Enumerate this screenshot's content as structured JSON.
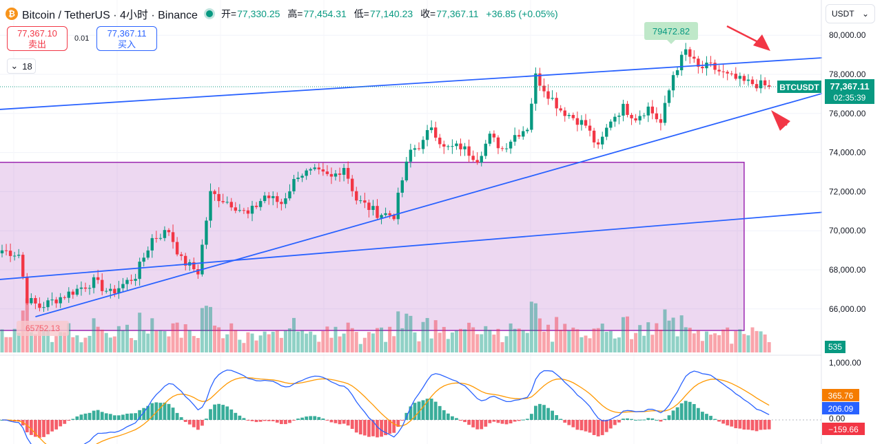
{
  "header": {
    "coin_glyph": "₿",
    "symbol": "Bitcoin / TetherUS · 4小时 · Binance",
    "open_label": "开=",
    "open": "77,330.25",
    "high_label": "高=",
    "high": "77,454.31",
    "low_label": "低=",
    "low": "77,140.23",
    "close_label": "收=",
    "close": "77,367.11",
    "change": "+36.85 (+0.05%)"
  },
  "trade": {
    "sell_price": "77,367.10",
    "sell_label": "卖出",
    "spread": "0.01",
    "buy_price": "77,367.11",
    "buy_label": "买入"
  },
  "indicators": {
    "count": "18"
  },
  "currency": {
    "label": "USDT",
    "caret": "⌄"
  },
  "colors": {
    "up": "#089981",
    "down": "#f23645",
    "line": "#2962ff",
    "zone": "#9c27b0"
  },
  "chart_data": {
    "type": "candlestick",
    "ylim": [
      63900,
      81200
    ],
    "y_ticks": [
      "80,000.00",
      "78,000.00",
      "76,000.00",
      "74,000.00",
      "72,000.00",
      "70,000.00",
      "68,000.00",
      "66,000.00"
    ],
    "y_tick_values": [
      80000,
      78000,
      76000,
      74000,
      72000,
      70000,
      68000,
      66000
    ],
    "price_label": {
      "symbol": "BTCUSDT",
      "price": "77,367.11",
      "countdown": "02:35:39"
    },
    "high_annotation": "79472.82",
    "low_annotation": "65752.13",
    "volume_label": "535",
    "anchor_points": [
      [
        0,
        69000
      ],
      [
        4,
        68800
      ],
      [
        6,
        66500
      ],
      [
        9,
        66100
      ],
      [
        15,
        66700
      ],
      [
        22,
        67400
      ],
      [
        26,
        66800
      ],
      [
        32,
        67700
      ],
      [
        36,
        69600
      ],
      [
        40,
        70000
      ],
      [
        43,
        68500
      ],
      [
        47,
        67900
      ],
      [
        50,
        71900
      ],
      [
        55,
        71400
      ],
      [
        59,
        70800
      ],
      [
        63,
        71800
      ],
      [
        67,
        71400
      ],
      [
        71,
        72900
      ],
      [
        75,
        73000
      ],
      [
        79,
        72700
      ],
      [
        82,
        73300
      ],
      [
        85,
        71600
      ],
      [
        90,
        70900
      ],
      [
        94,
        70800
      ],
      [
        96,
        72600
      ],
      [
        98,
        74100
      ],
      [
        101,
        74500
      ],
      [
        103,
        75400
      ],
      [
        106,
        74200
      ],
      [
        110,
        74300
      ],
      [
        114,
        73700
      ],
      [
        117,
        74800
      ],
      [
        120,
        74200
      ],
      [
        123,
        74900
      ],
      [
        126,
        75300
      ],
      [
        128,
        77900
      ],
      [
        131,
        77000
      ],
      [
        134,
        76200
      ],
      [
        137,
        75800
      ],
      [
        140,
        75400
      ],
      [
        143,
        74200
      ],
      [
        146,
        75700
      ],
      [
        149,
        76300
      ],
      [
        152,
        75800
      ],
      [
        155,
        76300
      ],
      [
        158,
        75500
      ],
      [
        161,
        78000
      ],
      [
        164,
        79200
      ],
      [
        167,
        78300
      ],
      [
        170,
        78400
      ],
      [
        174,
        77900
      ],
      [
        178,
        77600
      ],
      [
        181,
        77500
      ],
      [
        184,
        77367
      ]
    ],
    "trendlines": [
      {
        "name": "upper-channel-line",
        "p1": [
          -1,
          76200
        ],
        "p2": [
          197,
          78850
        ]
      },
      {
        "name": "rising-support-line",
        "p1": [
          8,
          65600
        ],
        "p2": [
          198,
          77100
        ]
      },
      {
        "name": "mid-trend-line",
        "p1": [
          -1,
          67500
        ],
        "p2": [
          197,
          70950
        ]
      }
    ],
    "zone": {
      "x_from": -1,
      "x_to": 178,
      "y_from": 64900,
      "y_to": 73500
    },
    "macd": {
      "ylim": [
        -400,
        1100
      ],
      "ticks": [
        "1,000.00",
        "0.00"
      ],
      "tick_values": [
        1000,
        0
      ],
      "signal_label": "365.76",
      "macd_label": "206.09",
      "hist_label": "−159.66"
    }
  }
}
